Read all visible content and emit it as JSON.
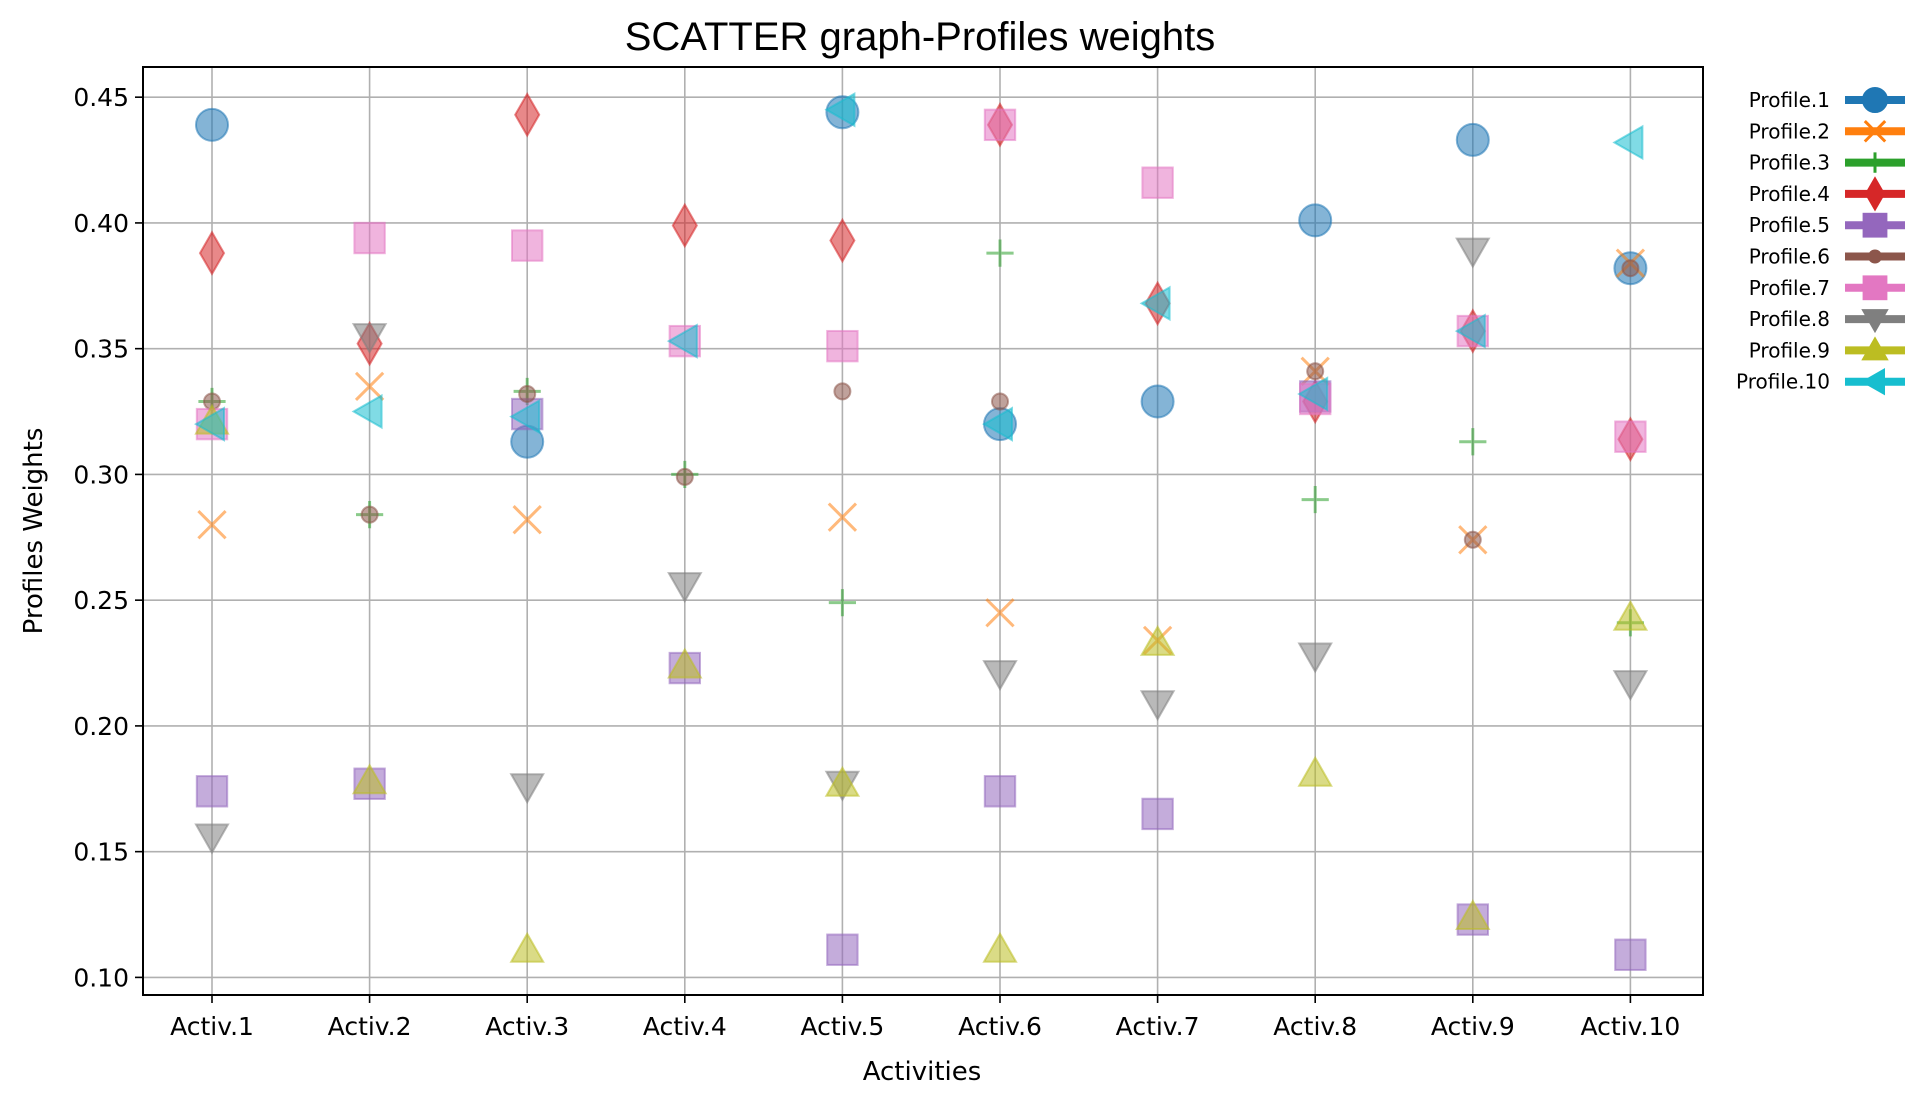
{
  "chart_data": {
    "type": "scatter",
    "title": "SCATTER graph-Profiles weights",
    "xlabel": "Activities",
    "ylabel": "Profiles Weights",
    "categories": [
      "Activ.1",
      "Activ.2",
      "Activ.3",
      "Activ.4",
      "Activ.5",
      "Activ.6",
      "Activ.7",
      "Activ.8",
      "Activ.9",
      "Activ.10"
    ],
    "ylim": [
      0.093,
      0.462
    ],
    "yticks": [
      "0.10",
      "0.15",
      "0.20",
      "0.25",
      "0.30",
      "0.35",
      "0.40",
      "0.45"
    ],
    "grid": true,
    "legend_position": "outside-right",
    "series": [
      {
        "name": "Profile.1",
        "color": "#1f77b4",
        "marker": "circle",
        "values": [
          0.439,
          null,
          0.313,
          null,
          0.444,
          0.32,
          0.329,
          0.401,
          0.433,
          0.382
        ]
      },
      {
        "name": "Profile.2",
        "color": "#ff7f0e",
        "marker": "x",
        "values": [
          0.28,
          0.335,
          0.282,
          null,
          0.283,
          0.245,
          0.234,
          0.341,
          0.274,
          0.384
        ]
      },
      {
        "name": "Profile.3",
        "color": "#2ca02c",
        "marker": "plus",
        "values": [
          0.329,
          0.284,
          0.333,
          0.3,
          0.249,
          0.388,
          null,
          0.29,
          0.313,
          0.241
        ]
      },
      {
        "name": "Profile.4",
        "color": "#d62728",
        "marker": "diamond",
        "values": [
          0.388,
          0.352,
          0.443,
          0.399,
          0.393,
          0.439,
          0.368,
          0.329,
          0.357,
          0.314
        ]
      },
      {
        "name": "Profile.5",
        "color": "#9467bd",
        "marker": "square",
        "values": [
          0.174,
          0.177,
          0.324,
          0.223,
          0.111,
          0.174,
          0.165,
          0.331,
          0.123,
          0.109
        ]
      },
      {
        "name": "Profile.6",
        "color": "#8c564b",
        "marker": "dot",
        "values": [
          0.329,
          0.284,
          0.332,
          0.299,
          0.333,
          0.329,
          null,
          0.341,
          0.274,
          0.382
        ]
      },
      {
        "name": "Profile.7",
        "color": "#e377c2",
        "marker": "square",
        "values": [
          0.32,
          0.394,
          0.391,
          0.353,
          0.351,
          0.439,
          0.416,
          0.33,
          0.357,
          0.315
        ]
      },
      {
        "name": "Profile.8",
        "color": "#7f7f7f",
        "marker": "triangle-down",
        "values": [
          0.156,
          0.355,
          0.176,
          0.256,
          0.177,
          0.221,
          0.209,
          0.228,
          0.389,
          0.217
        ]
      },
      {
        "name": "Profile.9",
        "color": "#bcbd22",
        "marker": "triangle-up",
        "values": [
          0.321,
          0.178,
          0.111,
          0.224,
          0.177,
          0.111,
          0.233,
          0.181,
          0.124,
          0.243
        ]
      },
      {
        "name": "Profile.10",
        "color": "#17becf",
        "marker": "triangle-left",
        "values": [
          0.32,
          0.325,
          0.323,
          0.353,
          0.445,
          0.32,
          0.368,
          0.332,
          0.357,
          0.432
        ]
      }
    ]
  }
}
